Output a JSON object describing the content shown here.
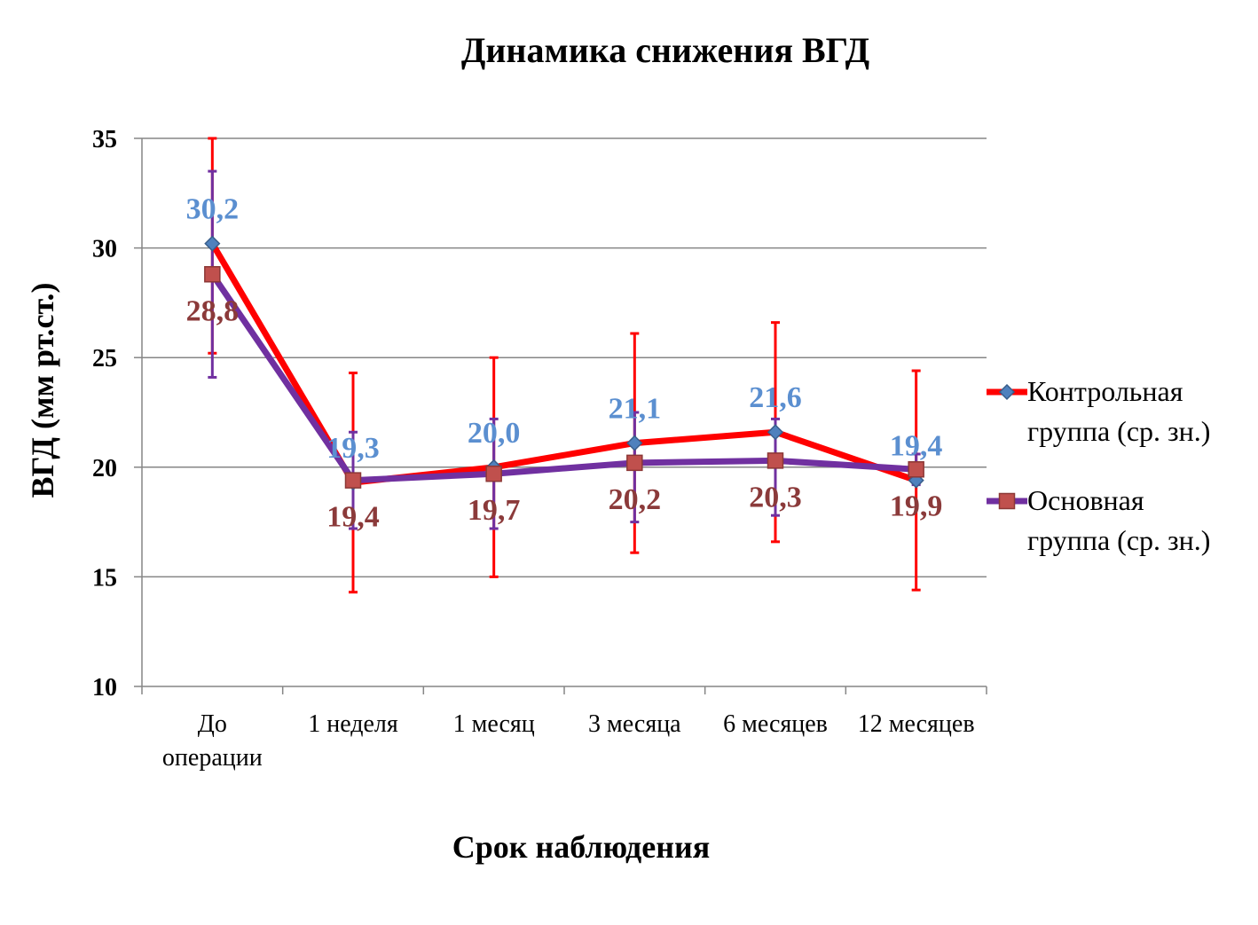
{
  "chart_data": {
    "type": "line",
    "title": "Динамика снижения ВГД",
    "xlabel": "Срок наблюдения",
    "ylabel": "ВГД (мм рт.ст.)",
    "ylim": [
      10,
      35
    ],
    "yticks": [
      10,
      15,
      20,
      25,
      30,
      35
    ],
    "grid": true,
    "legend_position": "right",
    "categories": [
      [
        "До",
        "операции"
      ],
      [
        "1 неделя"
      ],
      [
        "1 месяц"
      ],
      [
        "3 месяца"
      ],
      [
        "6 месяцев"
      ],
      [
        "12 месяцев"
      ]
    ],
    "series": [
      {
        "name": [
          "Контрольная",
          "группа (ср. зн.)"
        ],
        "values": [
          30.2,
          19.3,
          20.0,
          21.1,
          21.6,
          19.4
        ],
        "labels": [
          "30,2",
          "19,3",
          "20,0",
          "21,1",
          "21,6",
          "19,4"
        ],
        "error_low": [
          25.2,
          14.3,
          15.0,
          16.1,
          16.6,
          14.4
        ],
        "error_high": [
          35.0,
          24.3,
          25.0,
          26.1,
          26.6,
          24.4
        ],
        "line_color": "#ff0000",
        "marker_color": "#4f81bd",
        "label_color": "#5b8fd0",
        "marker": "diamond"
      },
      {
        "name": [
          "Основная",
          "группа (ср. зн.)"
        ],
        "values": [
          28.8,
          19.4,
          19.7,
          20.2,
          20.3,
          19.9
        ],
        "labels": [
          "28,8",
          "19,4",
          "19,7",
          "20,2",
          "20,3",
          "19,9"
        ],
        "error_low": [
          24.1,
          17.2,
          17.2,
          17.5,
          17.8,
          19.2
        ],
        "error_high": [
          33.5,
          21.6,
          22.2,
          22.5,
          22.2,
          20.6
        ],
        "line_color": "#7030a0",
        "marker_color": "#c0504d",
        "label_color": "#8b3a3a",
        "marker": "square"
      }
    ]
  }
}
